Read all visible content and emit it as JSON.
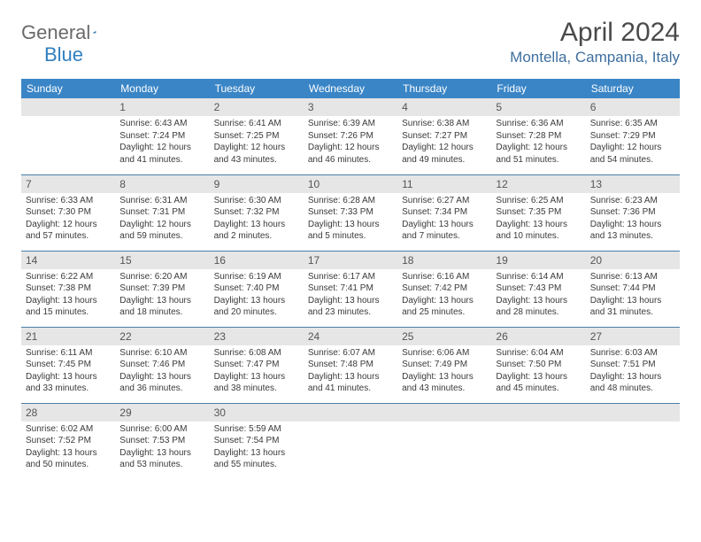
{
  "brand": {
    "word1": "General",
    "word2": "Blue"
  },
  "title": "April 2024",
  "location": "Montella, Campania, Italy",
  "colors": {
    "header_bg": "#3a85c6",
    "header_text": "#ffffff",
    "row_divider": "#4a80a8",
    "daynum_bg": "#e6e6e6",
    "logo_blue": "#2f7fbf",
    "location_color": "#3f6f9f"
  },
  "dayNames": [
    "Sunday",
    "Monday",
    "Tuesday",
    "Wednesday",
    "Thursday",
    "Friday",
    "Saturday"
  ],
  "grid": [
    [
      null,
      {
        "n": "1",
        "sr": "Sunrise: 6:43 AM",
        "ss": "Sunset: 7:24 PM",
        "d1": "Daylight: 12 hours",
        "d2": "and 41 minutes."
      },
      {
        "n": "2",
        "sr": "Sunrise: 6:41 AM",
        "ss": "Sunset: 7:25 PM",
        "d1": "Daylight: 12 hours",
        "d2": "and 43 minutes."
      },
      {
        "n": "3",
        "sr": "Sunrise: 6:39 AM",
        "ss": "Sunset: 7:26 PM",
        "d1": "Daylight: 12 hours",
        "d2": "and 46 minutes."
      },
      {
        "n": "4",
        "sr": "Sunrise: 6:38 AM",
        "ss": "Sunset: 7:27 PM",
        "d1": "Daylight: 12 hours",
        "d2": "and 49 minutes."
      },
      {
        "n": "5",
        "sr": "Sunrise: 6:36 AM",
        "ss": "Sunset: 7:28 PM",
        "d1": "Daylight: 12 hours",
        "d2": "and 51 minutes."
      },
      {
        "n": "6",
        "sr": "Sunrise: 6:35 AM",
        "ss": "Sunset: 7:29 PM",
        "d1": "Daylight: 12 hours",
        "d2": "and 54 minutes."
      }
    ],
    [
      {
        "n": "7",
        "sr": "Sunrise: 6:33 AM",
        "ss": "Sunset: 7:30 PM",
        "d1": "Daylight: 12 hours",
        "d2": "and 57 minutes."
      },
      {
        "n": "8",
        "sr": "Sunrise: 6:31 AM",
        "ss": "Sunset: 7:31 PM",
        "d1": "Daylight: 12 hours",
        "d2": "and 59 minutes."
      },
      {
        "n": "9",
        "sr": "Sunrise: 6:30 AM",
        "ss": "Sunset: 7:32 PM",
        "d1": "Daylight: 13 hours",
        "d2": "and 2 minutes."
      },
      {
        "n": "10",
        "sr": "Sunrise: 6:28 AM",
        "ss": "Sunset: 7:33 PM",
        "d1": "Daylight: 13 hours",
        "d2": "and 5 minutes."
      },
      {
        "n": "11",
        "sr": "Sunrise: 6:27 AM",
        "ss": "Sunset: 7:34 PM",
        "d1": "Daylight: 13 hours",
        "d2": "and 7 minutes."
      },
      {
        "n": "12",
        "sr": "Sunrise: 6:25 AM",
        "ss": "Sunset: 7:35 PM",
        "d1": "Daylight: 13 hours",
        "d2": "and 10 minutes."
      },
      {
        "n": "13",
        "sr": "Sunrise: 6:23 AM",
        "ss": "Sunset: 7:36 PM",
        "d1": "Daylight: 13 hours",
        "d2": "and 13 minutes."
      }
    ],
    [
      {
        "n": "14",
        "sr": "Sunrise: 6:22 AM",
        "ss": "Sunset: 7:38 PM",
        "d1": "Daylight: 13 hours",
        "d2": "and 15 minutes."
      },
      {
        "n": "15",
        "sr": "Sunrise: 6:20 AM",
        "ss": "Sunset: 7:39 PM",
        "d1": "Daylight: 13 hours",
        "d2": "and 18 minutes."
      },
      {
        "n": "16",
        "sr": "Sunrise: 6:19 AM",
        "ss": "Sunset: 7:40 PM",
        "d1": "Daylight: 13 hours",
        "d2": "and 20 minutes."
      },
      {
        "n": "17",
        "sr": "Sunrise: 6:17 AM",
        "ss": "Sunset: 7:41 PM",
        "d1": "Daylight: 13 hours",
        "d2": "and 23 minutes."
      },
      {
        "n": "18",
        "sr": "Sunrise: 6:16 AM",
        "ss": "Sunset: 7:42 PM",
        "d1": "Daylight: 13 hours",
        "d2": "and 25 minutes."
      },
      {
        "n": "19",
        "sr": "Sunrise: 6:14 AM",
        "ss": "Sunset: 7:43 PM",
        "d1": "Daylight: 13 hours",
        "d2": "and 28 minutes."
      },
      {
        "n": "20",
        "sr": "Sunrise: 6:13 AM",
        "ss": "Sunset: 7:44 PM",
        "d1": "Daylight: 13 hours",
        "d2": "and 31 minutes."
      }
    ],
    [
      {
        "n": "21",
        "sr": "Sunrise: 6:11 AM",
        "ss": "Sunset: 7:45 PM",
        "d1": "Daylight: 13 hours",
        "d2": "and 33 minutes."
      },
      {
        "n": "22",
        "sr": "Sunrise: 6:10 AM",
        "ss": "Sunset: 7:46 PM",
        "d1": "Daylight: 13 hours",
        "d2": "and 36 minutes."
      },
      {
        "n": "23",
        "sr": "Sunrise: 6:08 AM",
        "ss": "Sunset: 7:47 PM",
        "d1": "Daylight: 13 hours",
        "d2": "and 38 minutes."
      },
      {
        "n": "24",
        "sr": "Sunrise: 6:07 AM",
        "ss": "Sunset: 7:48 PM",
        "d1": "Daylight: 13 hours",
        "d2": "and 41 minutes."
      },
      {
        "n": "25",
        "sr": "Sunrise: 6:06 AM",
        "ss": "Sunset: 7:49 PM",
        "d1": "Daylight: 13 hours",
        "d2": "and 43 minutes."
      },
      {
        "n": "26",
        "sr": "Sunrise: 6:04 AM",
        "ss": "Sunset: 7:50 PM",
        "d1": "Daylight: 13 hours",
        "d2": "and 45 minutes."
      },
      {
        "n": "27",
        "sr": "Sunrise: 6:03 AM",
        "ss": "Sunset: 7:51 PM",
        "d1": "Daylight: 13 hours",
        "d2": "and 48 minutes."
      }
    ],
    [
      {
        "n": "28",
        "sr": "Sunrise: 6:02 AM",
        "ss": "Sunset: 7:52 PM",
        "d1": "Daylight: 13 hours",
        "d2": "and 50 minutes."
      },
      {
        "n": "29",
        "sr": "Sunrise: 6:00 AM",
        "ss": "Sunset: 7:53 PM",
        "d1": "Daylight: 13 hours",
        "d2": "and 53 minutes."
      },
      {
        "n": "30",
        "sr": "Sunrise: 5:59 AM",
        "ss": "Sunset: 7:54 PM",
        "d1": "Daylight: 13 hours",
        "d2": "and 55 minutes."
      },
      null,
      null,
      null,
      null
    ]
  ]
}
